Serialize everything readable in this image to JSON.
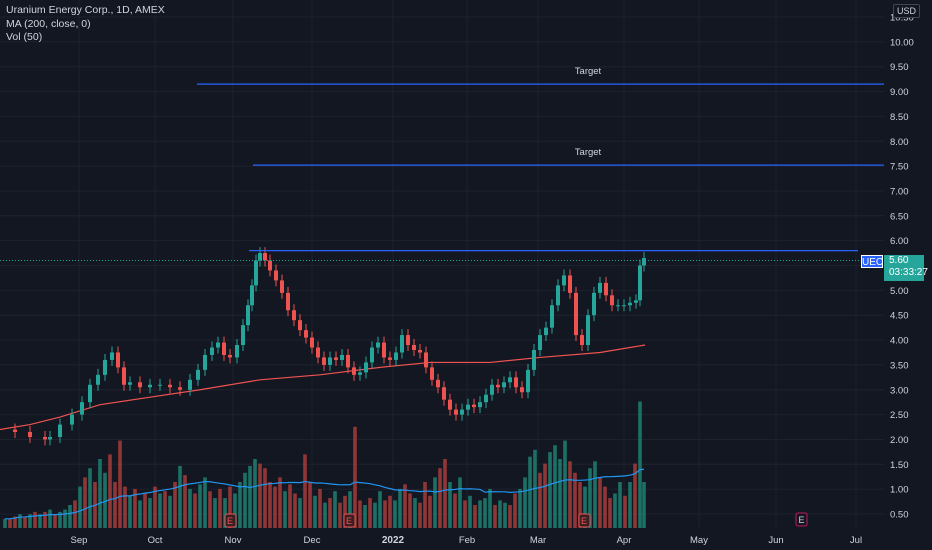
{
  "legend": {
    "symbol": "Uranium Energy Corp., 1D, AMEX",
    "ma": "MA (200, close, 0)",
    "vol": "Vol (50)"
  },
  "currency": "USD",
  "price_tag": {
    "symbol": "UEC",
    "price": "5.60",
    "countdown": "03:33:27"
  },
  "colors": {
    "up": "#26a69a",
    "down": "#ef5350",
    "ma": "#f05350",
    "vol_ma": "#2196f3",
    "line": "#2962ff",
    "bg": "#131722"
  },
  "target_labels": [
    "Target",
    "Target"
  ],
  "earnings_marker": "E",
  "chart_data": {
    "type": "candlestick",
    "title": "Uranium Energy Corp., 1D, AMEX",
    "ylim": [
      0.25,
      10.75
    ],
    "y_ticks": [
      "10.50",
      "10.00",
      "9.50",
      "9.00",
      "8.50",
      "8.00",
      "7.50",
      "7.00",
      "6.50",
      "6.00",
      "5.50",
      "5.00",
      "4.50",
      "4.00",
      "3.50",
      "3.00",
      "2.50",
      "2.00",
      "1.50",
      "1.00",
      "0.50"
    ],
    "x_ticks": [
      "Sep",
      "Oct",
      "Nov",
      "Dec",
      "2022",
      "Feb",
      "Mar",
      "Apr",
      "May",
      "Jun",
      "Jul"
    ],
    "bold_x_tick": "2022",
    "last_price": 5.6,
    "horizontal_lines": [
      {
        "label": "Target",
        "price": 9.15
      },
      {
        "label": "Target",
        "price": 7.52
      },
      {
        "label": "",
        "price": 5.8
      }
    ],
    "ma200_points": [
      [
        0,
        2.2
      ],
      [
        30,
        2.3
      ],
      [
        60,
        2.45
      ],
      [
        100,
        2.7
      ],
      [
        150,
        2.85
      ],
      [
        200,
        3.0
      ],
      [
        260,
        3.2
      ],
      [
        320,
        3.3
      ],
      [
        380,
        3.45
      ],
      [
        430,
        3.55
      ],
      [
        490,
        3.55
      ],
      [
        540,
        3.65
      ],
      [
        600,
        3.75
      ],
      [
        645,
        3.9
      ]
    ],
    "ma200_values_note": "",
    "price_path": [
      [
        0,
        2.2
      ],
      [
        15,
        2.15
      ],
      [
        30,
        2.05
      ],
      [
        45,
        2.0
      ],
      [
        50,
        2.05
      ],
      [
        60,
        2.3
      ],
      [
        72,
        2.5
      ],
      [
        82,
        2.75
      ],
      [
        90,
        3.1
      ],
      [
        98,
        3.3
      ],
      [
        105,
        3.6
      ],
      [
        112,
        3.75
      ],
      [
        118,
        3.45
      ],
      [
        124,
        3.1
      ],
      [
        130,
        3.15
      ],
      [
        140,
        3.05
      ],
      [
        150,
        3.1
      ],
      [
        160,
        3.1
      ],
      [
        170,
        3.05
      ],
      [
        180,
        3.0
      ],
      [
        190,
        3.2
      ],
      [
        198,
        3.4
      ],
      [
        205,
        3.7
      ],
      [
        212,
        3.85
      ],
      [
        218,
        3.95
      ],
      [
        224,
        3.7
      ],
      [
        230,
        3.65
      ],
      [
        237,
        3.9
      ],
      [
        243,
        4.3
      ],
      [
        248,
        4.7
      ],
      [
        252,
        5.1
      ],
      [
        256,
        5.6
      ],
      [
        260,
        5.75
      ],
      [
        265,
        5.6
      ],
      [
        270,
        5.4
      ],
      [
        276,
        5.2
      ],
      [
        282,
        4.95
      ],
      [
        288,
        4.6
      ],
      [
        294,
        4.4
      ],
      [
        300,
        4.2
      ],
      [
        306,
        4.05
      ],
      [
        312,
        3.85
      ],
      [
        318,
        3.65
      ],
      [
        324,
        3.5
      ],
      [
        330,
        3.65
      ],
      [
        336,
        3.6
      ],
      [
        342,
        3.7
      ],
      [
        348,
        3.45
      ],
      [
        354,
        3.3
      ],
      [
        360,
        3.35
      ],
      [
        366,
        3.55
      ],
      [
        372,
        3.85
      ],
      [
        378,
        3.95
      ],
      [
        384,
        3.65
      ],
      [
        390,
        3.6
      ],
      [
        396,
        3.75
      ],
      [
        402,
        4.1
      ],
      [
        408,
        3.9
      ],
      [
        414,
        3.8
      ],
      [
        420,
        3.75
      ],
      [
        426,
        3.45
      ],
      [
        432,
        3.2
      ],
      [
        438,
        3.05
      ],
      [
        444,
        2.8
      ],
      [
        450,
        2.6
      ],
      [
        456,
        2.5
      ],
      [
        462,
        2.6
      ],
      [
        468,
        2.7
      ],
      [
        474,
        2.65
      ],
      [
        480,
        2.75
      ],
      [
        486,
        2.9
      ],
      [
        492,
        3.1
      ],
      [
        498,
        3.05
      ],
      [
        504,
        3.15
      ],
      [
        510,
        3.25
      ],
      [
        516,
        3.05
      ],
      [
        522,
        2.95
      ],
      [
        528,
        3.4
      ],
      [
        534,
        3.8
      ],
      [
        540,
        4.1
      ],
      [
        546,
        4.25
      ],
      [
        552,
        4.7
      ],
      [
        558,
        5.1
      ],
      [
        564,
        5.3
      ],
      [
        570,
        4.95
      ],
      [
        576,
        4.1
      ],
      [
        582,
        3.9
      ],
      [
        588,
        4.5
      ],
      [
        594,
        4.95
      ],
      [
        600,
        5.15
      ],
      [
        606,
        4.9
      ],
      [
        612,
        4.7
      ],
      [
        618,
        4.7
      ],
      [
        624,
        4.7
      ],
      [
        630,
        4.75
      ],
      [
        636,
        4.8
      ],
      [
        640,
        5.5
      ],
      [
        644,
        5.65
      ]
    ],
    "volume_ylim": [
      0,
      50
    ],
    "volume_bars": [
      [
        5,
        4,
        "u"
      ],
      [
        10,
        4,
        "d"
      ],
      [
        15,
        5,
        "d"
      ],
      [
        20,
        6,
        "u"
      ],
      [
        25,
        5,
        "d"
      ],
      [
        30,
        6,
        "u"
      ],
      [
        35,
        7,
        "d"
      ],
      [
        40,
        6,
        "u"
      ],
      [
        45,
        7,
        "d"
      ],
      [
        50,
        8,
        "u"
      ],
      [
        55,
        6,
        "d"
      ],
      [
        60,
        7,
        "u"
      ],
      [
        65,
        8,
        "u"
      ],
      [
        70,
        10,
        "u"
      ],
      [
        75,
        12,
        "d"
      ],
      [
        80,
        18,
        "u"
      ],
      [
        85,
        22,
        "d"
      ],
      [
        90,
        26,
        "u"
      ],
      [
        95,
        20,
        "d"
      ],
      [
        100,
        30,
        "u"
      ],
      [
        105,
        24,
        "u"
      ],
      [
        110,
        32,
        "d"
      ],
      [
        115,
        20,
        "d"
      ],
      [
        120,
        38,
        "d"
      ],
      [
        125,
        18,
        "d"
      ],
      [
        130,
        14,
        "u"
      ],
      [
        135,
        17,
        "d"
      ],
      [
        140,
        12,
        "u"
      ],
      [
        145,
        15,
        "d"
      ],
      [
        150,
        13,
        "u"
      ],
      [
        155,
        18,
        "d"
      ],
      [
        160,
        15,
        "u"
      ],
      [
        165,
        16,
        "d"
      ],
      [
        170,
        14,
        "u"
      ],
      [
        175,
        20,
        "d"
      ],
      [
        180,
        27,
        "u"
      ],
      [
        185,
        23,
        "d"
      ],
      [
        190,
        17,
        "u"
      ],
      [
        195,
        15,
        "d"
      ],
      [
        200,
        19,
        "u"
      ],
      [
        205,
        22,
        "u"
      ],
      [
        210,
        16,
        "d"
      ],
      [
        215,
        13,
        "u"
      ],
      [
        220,
        17,
        "d"
      ],
      [
        225,
        13,
        "u"
      ],
      [
        230,
        18,
        "d"
      ],
      [
        235,
        15,
        "u"
      ],
      [
        240,
        20,
        "u"
      ],
      [
        245,
        24,
        "u"
      ],
      [
        250,
        27,
        "u"
      ],
      [
        255,
        30,
        "u"
      ],
      [
        260,
        28,
        "d"
      ],
      [
        265,
        26,
        "d"
      ],
      [
        270,
        20,
        "d"
      ],
      [
        275,
        18,
        "d"
      ],
      [
        280,
        22,
        "d"
      ],
      [
        285,
        16,
        "u"
      ],
      [
        290,
        19,
        "d"
      ],
      [
        295,
        15,
        "d"
      ],
      [
        300,
        13,
        "u"
      ],
      [
        305,
        32,
        "d"
      ],
      [
        310,
        20,
        "d"
      ],
      [
        315,
        14,
        "u"
      ],
      [
        320,
        17,
        "d"
      ],
      [
        325,
        11,
        "u"
      ],
      [
        330,
        13,
        "d"
      ],
      [
        335,
        16,
        "u"
      ],
      [
        340,
        11,
        "d"
      ],
      [
        345,
        14,
        "d"
      ],
      [
        350,
        16,
        "u"
      ],
      [
        355,
        44,
        "d"
      ],
      [
        360,
        12,
        "d"
      ],
      [
        365,
        10,
        "u"
      ],
      [
        370,
        13,
        "d"
      ],
      [
        375,
        11,
        "u"
      ],
      [
        380,
        16,
        "u"
      ],
      [
        385,
        12,
        "d"
      ],
      [
        390,
        14,
        "d"
      ],
      [
        395,
        12,
        "u"
      ],
      [
        400,
        17,
        "u"
      ],
      [
        405,
        19,
        "d"
      ],
      [
        410,
        15,
        "d"
      ],
      [
        415,
        13,
        "u"
      ],
      [
        420,
        11,
        "d"
      ],
      [
        425,
        20,
        "d"
      ],
      [
        430,
        14,
        "d"
      ],
      [
        435,
        22,
        "u"
      ],
      [
        440,
        26,
        "d"
      ],
      [
        445,
        30,
        "d"
      ],
      [
        450,
        20,
        "u"
      ],
      [
        455,
        15,
        "d"
      ],
      [
        460,
        22,
        "u"
      ],
      [
        465,
        12,
        "d"
      ],
      [
        470,
        14,
        "u"
      ],
      [
        475,
        10,
        "d"
      ],
      [
        480,
        12,
        "u"
      ],
      [
        485,
        13,
        "u"
      ],
      [
        490,
        17,
        "u"
      ],
      [
        495,
        10,
        "d"
      ],
      [
        500,
        12,
        "u"
      ],
      [
        505,
        11,
        "u"
      ],
      [
        510,
        10,
        "d"
      ],
      [
        515,
        15,
        "d"
      ],
      [
        520,
        17,
        "u"
      ],
      [
        525,
        22,
        "u"
      ],
      [
        530,
        31,
        "u"
      ],
      [
        535,
        34,
        "u"
      ],
      [
        540,
        24,
        "d"
      ],
      [
        545,
        28,
        "d"
      ],
      [
        550,
        33,
        "u"
      ],
      [
        555,
        36,
        "u"
      ],
      [
        560,
        30,
        "u"
      ],
      [
        565,
        38,
        "u"
      ],
      [
        570,
        29,
        "d"
      ],
      [
        575,
        24,
        "d"
      ],
      [
        580,
        20,
        "d"
      ],
      [
        585,
        18,
        "u"
      ],
      [
        590,
        26,
        "u"
      ],
      [
        595,
        29,
        "u"
      ],
      [
        600,
        22,
        "d"
      ],
      [
        605,
        18,
        "d"
      ],
      [
        610,
        13,
        "d"
      ],
      [
        615,
        15,
        "u"
      ],
      [
        620,
        20,
        "u"
      ],
      [
        625,
        14,
        "d"
      ],
      [
        630,
        20,
        "u"
      ],
      [
        635,
        28,
        "d"
      ],
      [
        640,
        55,
        "u"
      ],
      [
        644,
        20,
        "u"
      ]
    ]
  }
}
